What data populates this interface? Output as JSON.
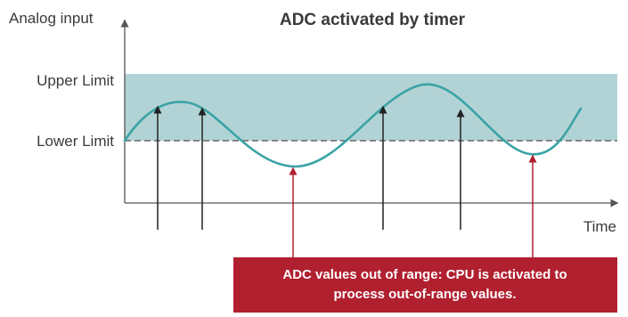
{
  "title": "ADC activated by timer",
  "y_axis_label": "Analog input",
  "x_axis_label": "Time",
  "upper_limit_label": "Upper Limit",
  "lower_limit_label": "Lower Limit",
  "callout": {
    "line1": "ADC values out of range: CPU is activated to",
    "line2": "process out-of-range values."
  },
  "colors": {
    "band": "#b2d3d5",
    "wave": "#3aa3a6",
    "callout": "#b0202f",
    "axis": "#555555",
    "limit_line": "#666666"
  }
}
